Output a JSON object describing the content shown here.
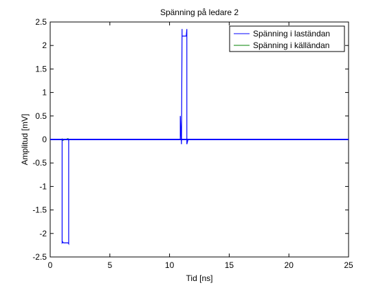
{
  "chart_data": {
    "type": "line",
    "title": "Spänning på ledare 2",
    "xlabel": "Tid [ns]",
    "ylabel": "Amplitud [mV]",
    "xlim": [
      0,
      25
    ],
    "ylim": [
      -2.5,
      2.5
    ],
    "xticks": [
      0,
      5,
      10,
      15,
      20,
      25
    ],
    "xtick_labels": [
      "0",
      "5",
      "10",
      "15",
      "20",
      "25"
    ],
    "yticks": [
      -2.5,
      -2,
      -1.5,
      -1,
      -0.5,
      0,
      0.5,
      1,
      1.5,
      2,
      2.5
    ],
    "ytick_labels": [
      "-2.5",
      "-2",
      "-1.5",
      "-1",
      "-0.5",
      "0",
      "0.5",
      "1",
      "1.5",
      "2",
      "2.5"
    ],
    "grid": false,
    "legend_position": "top-right",
    "series": [
      {
        "name": "Spänning i laständan",
        "color": "#0000ff",
        "x": [
          0,
          1.0,
          1.0,
          1.05,
          1.1,
          1.5,
          1.55,
          1.55,
          10.9,
          10.9,
          11.0,
          11.05,
          11.05,
          11.4,
          11.45,
          11.45,
          11.55,
          25
        ],
        "y": [
          0,
          0,
          -2.2,
          -2.18,
          -2.2,
          -2.2,
          -2.22,
          0,
          0,
          0.5,
          -0.1,
          2.35,
          2.2,
          2.2,
          2.35,
          -0.1,
          0,
          0
        ]
      },
      {
        "name": "Spänning i källändan",
        "color": "#008000",
        "x": [
          0,
          1.0,
          1.0,
          1.05,
          1.5,
          1.55,
          1.55,
          25
        ],
        "y": [
          0,
          0,
          0.02,
          -0.02,
          0.02,
          -0.02,
          0,
          0
        ]
      }
    ]
  }
}
